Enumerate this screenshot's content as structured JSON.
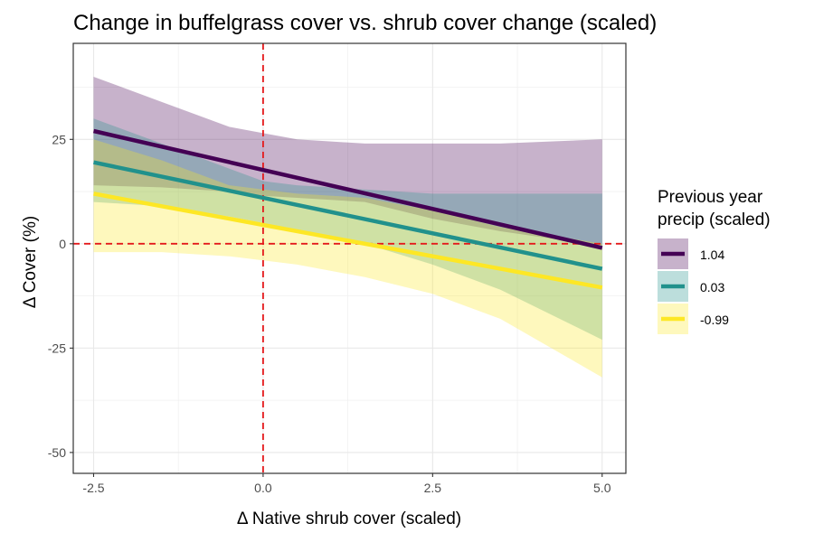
{
  "chart_data": {
    "type": "line",
    "title": "Change in buffelgrass cover vs. shrub cover change (scaled)",
    "xlabel": "Δ Native shrub cover (scaled)",
    "ylabel": "Δ Cover (%)",
    "xlim": [
      -2.8,
      5.35
    ],
    "ylim": [
      -55,
      48
    ],
    "x_ticks": [
      -2.5,
      0.0,
      2.5,
      5.0
    ],
    "x_tick_labels": [
      "-2.5",
      "0.0",
      "2.5",
      "5.0"
    ],
    "y_ticks": [
      -50,
      -25,
      0,
      25
    ],
    "y_tick_labels": [
      "-50",
      "-25",
      "0",
      "25"
    ],
    "grid": true,
    "reference_lines": [
      {
        "axis": "x",
        "value": 0,
        "color": "#e41a1c",
        "style": "dashed"
      },
      {
        "axis": "y",
        "value": 0,
        "color": "#e41a1c",
        "style": "dashed"
      }
    ],
    "legend": {
      "title_lines": [
        "Previous year",
        "precip (scaled)"
      ],
      "placement": "right"
    },
    "series": [
      {
        "name": "1.04",
        "color": "#440154",
        "x": [
          -2.5,
          5.0
        ],
        "y": [
          27,
          -1
        ],
        "band": {
          "x": [
            -2.5,
            -1.5,
            -0.5,
            0.0,
            0.5,
            1.5,
            2.5,
            3.5,
            5.0
          ],
          "upper": [
            40,
            34,
            28,
            26.5,
            25,
            24,
            24,
            24,
            25
          ],
          "lower": [
            14,
            13.5,
            12.5,
            11.5,
            11,
            10,
            6,
            3,
            -0.5
          ]
        }
      },
      {
        "name": "0.03",
        "color": "#21918c",
        "x": [
          -2.5,
          5.0
        ],
        "y": [
          19.5,
          -6
        ],
        "band": {
          "x": [
            -2.5,
            -1.5,
            -0.5,
            0.0,
            0.5,
            1.5,
            2.5,
            3.5,
            5.0
          ],
          "upper": [
            30,
            24,
            18,
            15,
            14,
            13,
            12,
            12,
            12
          ],
          "lower": [
            10,
            9,
            6.5,
            5,
            3,
            0,
            -5,
            -11,
            -23
          ]
        }
      },
      {
        "name": "-0.99",
        "color": "#fde725",
        "x": [
          -2.5,
          5.0
        ],
        "y": [
          12,
          -10.5
        ],
        "band": {
          "x": [
            -2.5,
            -1.5,
            -0.5,
            0.0,
            0.5,
            1.5,
            2.5,
            3.5,
            5.0
          ],
          "upper": [
            25,
            20,
            14,
            13,
            12,
            11,
            8,
            4,
            0
          ],
          "lower": [
            -2,
            -2,
            -3,
            -4,
            -5,
            -8,
            -12,
            -18,
            -32
          ]
        }
      }
    ]
  }
}
